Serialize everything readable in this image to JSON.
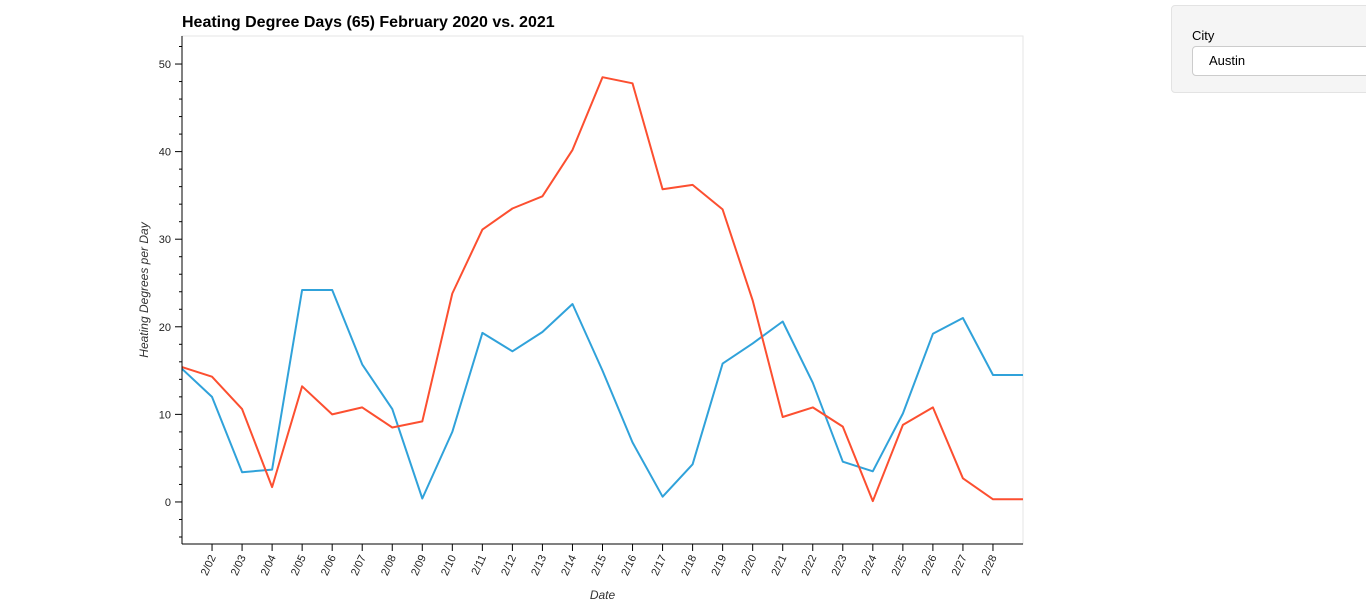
{
  "chart_data": {
    "type": "line",
    "title": "Heating Degree Days (65) February 2020 vs. 2021",
    "xlabel": "Date",
    "ylabel": "Heating Degrees per Day",
    "x": [
      1,
      2,
      3,
      4,
      5,
      6,
      7,
      8,
      9,
      10,
      11,
      12,
      13,
      14,
      15,
      16,
      17,
      18,
      19,
      20,
      21,
      22,
      23,
      24,
      25,
      26,
      27,
      28,
      29
    ],
    "x_tick_values": [
      2,
      3,
      4,
      5,
      6,
      7,
      8,
      9,
      10,
      11,
      12,
      13,
      14,
      15,
      16,
      17,
      18,
      19,
      20,
      21,
      22,
      23,
      24,
      25,
      26,
      27,
      28
    ],
    "x_tick_labels": [
      "2/02",
      "2/03",
      "2/04",
      "2/05",
      "2/06",
      "2/07",
      "2/08",
      "2/09",
      "2/10",
      "2/11",
      "2/12",
      "2/13",
      "2/14",
      "2/15",
      "2/16",
      "2/17",
      "2/18",
      "2/19",
      "2/20",
      "2/21",
      "2/22",
      "2/23",
      "2/24",
      "2/25",
      "2/26",
      "2/27",
      "2/28"
    ],
    "xlim": [
      1,
      29
    ],
    "ylim": [
      -4.8,
      53.2
    ],
    "y_ticks": [
      0,
      10,
      20,
      30,
      40,
      50
    ],
    "grid": false,
    "series": [
      {
        "color": "#30a2da",
        "values": [
          15.2,
          12.0,
          3.4,
          3.7,
          24.2,
          24.2,
          15.7,
          10.6,
          0.4,
          8.0,
          19.3,
          17.2,
          19.4,
          22.6,
          15.0,
          6.8,
          0.6,
          4.3,
          15.8,
          18.1,
          20.6,
          13.6,
          4.6,
          3.5,
          10.1,
          19.2,
          21.0,
          14.5,
          14.5
        ]
      },
      {
        "color": "#fc4f30",
        "values": [
          15.4,
          14.3,
          10.6,
          1.7,
          13.2,
          10.0,
          10.8,
          8.5,
          9.2,
          23.8,
          31.1,
          33.5,
          34.9,
          40.2,
          48.5,
          47.8,
          35.7,
          36.2,
          33.4,
          23.0,
          9.7,
          10.8,
          8.6,
          0.1,
          8.8,
          10.8,
          2.7,
          0.3,
          0.3
        ]
      }
    ]
  },
  "widget": {
    "label": "City",
    "selected": "Austin"
  }
}
